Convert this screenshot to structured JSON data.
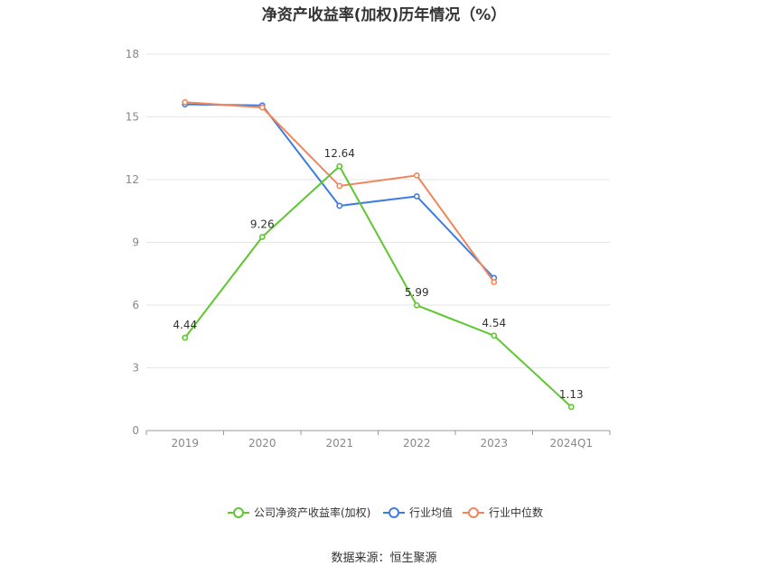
{
  "chart_data": {
    "type": "line",
    "title": "净资产收益率(加权)历年情况（%）",
    "categories": [
      "2019",
      "2020",
      "2021",
      "2022",
      "2023",
      "2024Q1"
    ],
    "ylim": [
      0,
      18
    ],
    "yticks": [
      0,
      3,
      6,
      9,
      12,
      15,
      18
    ],
    "grid": true,
    "legend_position": "bottom",
    "series": [
      {
        "name": "公司净资产收益率(加权)",
        "color": "#5ec730",
        "values": [
          4.44,
          9.26,
          12.64,
          5.99,
          4.54,
          1.13
        ],
        "labels": [
          "4.44",
          "9.26",
          "12.64",
          "5.99",
          "4.54",
          "1.13"
        ]
      },
      {
        "name": "行业均值",
        "color": "#3f7ce0",
        "values": [
          15.6,
          15.55,
          10.75,
          11.2,
          7.3,
          null
        ]
      },
      {
        "name": "行业中位数",
        "color": "#f0875a",
        "values": [
          15.7,
          15.45,
          11.7,
          12.2,
          7.1,
          null
        ]
      }
    ]
  },
  "source": "数据来源：恒生聚源"
}
